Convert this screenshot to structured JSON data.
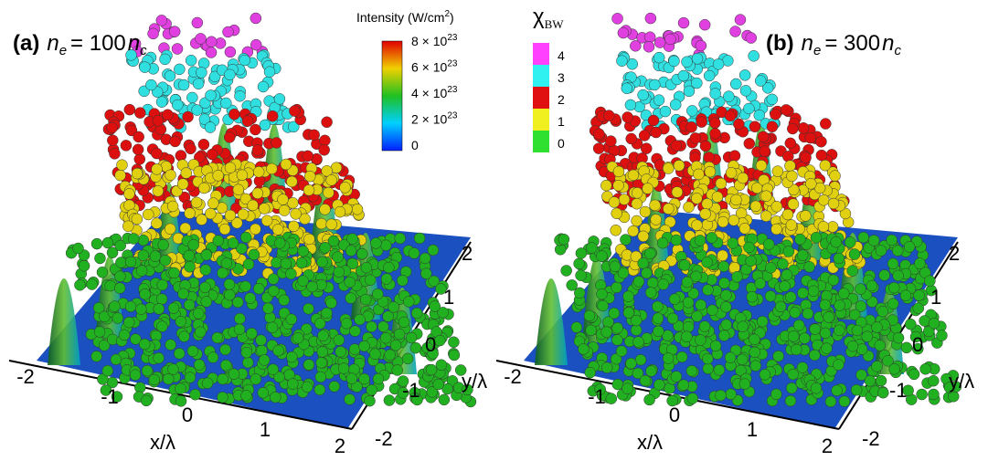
{
  "panels": [
    {
      "label": "(a)",
      "density": "n",
      "density_sub": "e",
      "equals": "= 100",
      "unit": "n",
      "unit_sub": "c",
      "x_label": "x/λ",
      "y_label": "y/λ",
      "x_ticks": [
        "-2",
        "-1",
        "0",
        "1",
        "2"
      ],
      "y_ticks": [
        "-2",
        "-1",
        "0",
        "1",
        "2"
      ]
    },
    {
      "label": "(b)",
      "density": "n",
      "density_sub": "e",
      "equals": "= 300",
      "unit": "n",
      "unit_sub": "c",
      "x_label": "x/λ",
      "y_label": "y/λ",
      "x_ticks": [
        "-2",
        "-1",
        "0",
        "1",
        "2"
      ],
      "y_ticks": [
        "-2",
        "-1",
        "0",
        "1",
        "2"
      ]
    }
  ],
  "colorbar": {
    "title": "Intensity (W/cm",
    "title_sup": "2",
    "title_end": ")",
    "ticks": [
      {
        "base": "8 × 10",
        "exp": "23"
      },
      {
        "base": "6 × 10",
        "exp": "23"
      },
      {
        "base": "4 × 10",
        "exp": "23"
      },
      {
        "base": "2 × 10",
        "exp": "23"
      },
      {
        "base": "0"
      }
    ]
  },
  "legend": {
    "title": "χ",
    "title_sub": "BW",
    "ticks": [
      "4",
      "3",
      "2",
      "1",
      "0"
    ]
  }
}
